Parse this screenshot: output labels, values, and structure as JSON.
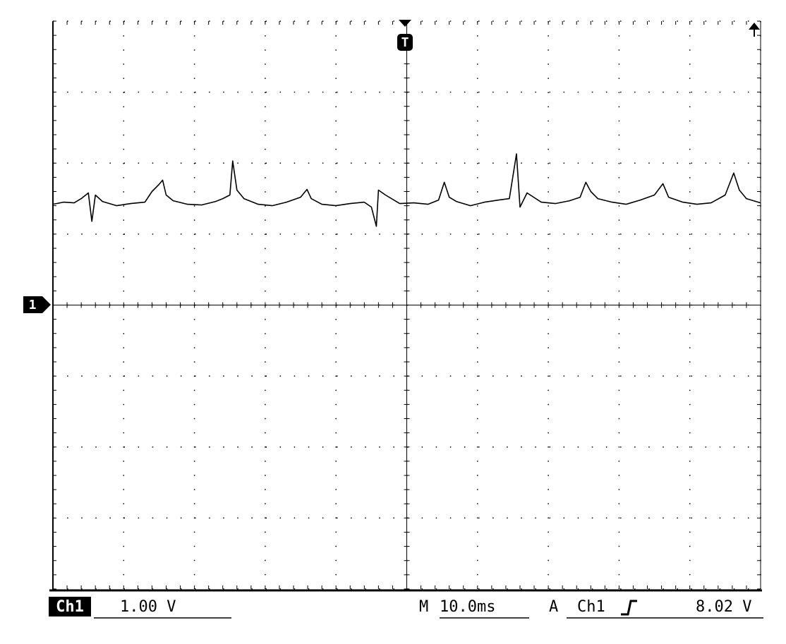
{
  "chart_data": {
    "type": "line",
    "channel_label": "Ch1",
    "volts_per_div": "1.00 V",
    "timebase_prefix": "M",
    "timebase": "10.0ms",
    "trigger_mode": "A",
    "trigger_source": "Ch1",
    "trigger_level": "8.02 V",
    "trigger_marker": "T",
    "ground_marker": "1",
    "xlim": [
      -50,
      50
    ],
    "ylim": [
      -4,
      4
    ],
    "grid": true,
    "color": "#000000",
    "x": [
      -50,
      -48.5,
      -47,
      -46,
      -45,
      -44.5,
      -44,
      -43,
      -41,
      -39,
      -37,
      -36,
      -35,
      -34.5,
      -34,
      -33,
      -31,
      -29,
      -27,
      -26,
      -25,
      -24.6,
      -24,
      -23,
      -21,
      -19,
      -17,
      -15,
      -14.1,
      -13.5,
      -12,
      -10,
      -8,
      -6,
      -5,
      -4.3,
      -4,
      -3,
      -1,
      1,
      3,
      4.5,
      5.3,
      6,
      7,
      9,
      11,
      13,
      14.5,
      15.5,
      16,
      17,
      19,
      21,
      23,
      24.5,
      25.3,
      26,
      27,
      29,
      31,
      33,
      35,
      36.2,
      37,
      39,
      41,
      43,
      45,
      46.2,
      47,
      48,
      50
    ],
    "values": [
      1.42,
      1.45,
      1.44,
      1.5,
      1.58,
      1.18,
      1.55,
      1.46,
      1.4,
      1.43,
      1.45,
      1.6,
      1.7,
      1.76,
      1.55,
      1.47,
      1.42,
      1.41,
      1.46,
      1.5,
      1.55,
      2.03,
      1.62,
      1.5,
      1.42,
      1.4,
      1.45,
      1.52,
      1.63,
      1.5,
      1.42,
      1.4,
      1.43,
      1.45,
      1.38,
      1.11,
      1.62,
      1.55,
      1.43,
      1.44,
      1.42,
      1.48,
      1.73,
      1.52,
      1.46,
      1.4,
      1.45,
      1.48,
      1.5,
      2.13,
      1.38,
      1.58,
      1.45,
      1.43,
      1.47,
      1.52,
      1.73,
      1.6,
      1.5,
      1.45,
      1.42,
      1.48,
      1.55,
      1.71,
      1.52,
      1.45,
      1.42,
      1.44,
      1.55,
      1.86,
      1.62,
      1.5,
      1.44
    ]
  }
}
